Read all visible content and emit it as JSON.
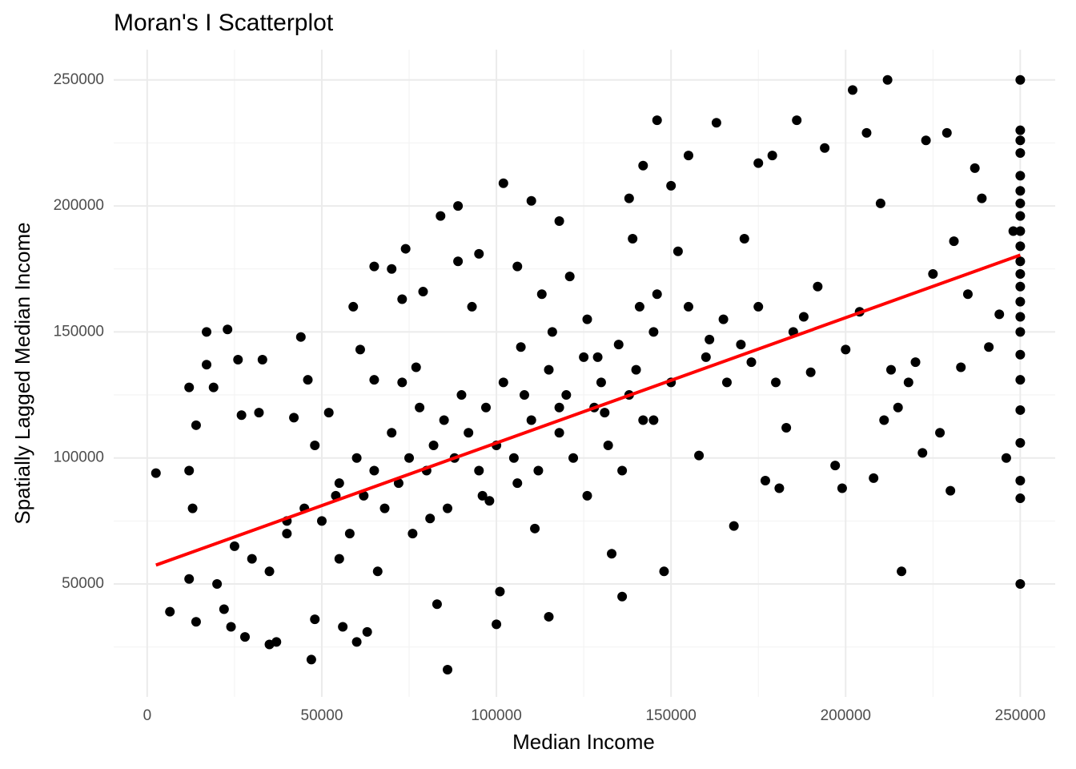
{
  "chart_data": {
    "type": "scatter",
    "title": "Moran's I Scatterplot",
    "x_label": "Median Income",
    "y_label": "Spatially Lagged Median Income",
    "color": "#000000",
    "x": [
      2500,
      6500,
      12000,
      12000,
      12000,
      13000,
      14000,
      14000,
      17000,
      17000,
      19000,
      23000,
      22000,
      24000,
      26000,
      27000,
      28000,
      32000,
      33000,
      35000,
      37000,
      40000,
      42000,
      44000,
      46000,
      47000,
      48000,
      52000,
      54000,
      56000,
      59000,
      60000,
      61000,
      63000,
      65000,
      65000,
      70000,
      73000,
      74000,
      77000,
      79000,
      81000,
      83000,
      84000,
      86000,
      89000,
      89000,
      95000,
      98000,
      100000,
      101000,
      102000,
      106000,
      107000,
      110000,
      111000,
      115000,
      118000,
      118000,
      121000,
      126000,
      129000,
      131000,
      133000,
      136000,
      138000,
      139000,
      141000,
      142000,
      145000,
      146000,
      148000,
      150000,
      152000,
      155000,
      158000,
      161000,
      163000,
      166000,
      168000,
      171000,
      173000,
      175000,
      177000,
      179000,
      181000,
      183000,
      186000,
      188000,
      190000,
      192000,
      194000,
      197000,
      199000,
      200000,
      202000,
      204000,
      206000,
      208000,
      210000,
      211000,
      212000,
      213000,
      215000,
      216000,
      218000,
      220000,
      222000,
      223000,
      225000,
      227000,
      229000,
      230000,
      231000,
      233000,
      235000,
      237000,
      239000,
      241000,
      244000,
      246000,
      248000,
      250000,
      250000,
      250000,
      250000,
      250000,
      250000,
      250000,
      250000,
      250000,
      250000,
      250000,
      250000,
      250000,
      250000,
      250000,
      250000,
      250000,
      250000,
      250000,
      250000,
      250000,
      250000,
      250000,
      40000,
      45000,
      50000,
      55000,
      58000,
      60000,
      62000,
      65000,
      68000,
      70000,
      72000,
      75000,
      78000,
      80000,
      82000,
      85000,
      88000,
      90000,
      92000,
      95000,
      97000,
      100000,
      102000,
      105000,
      108000,
      110000,
      112000,
      115000,
      118000,
      120000,
      122000,
      125000,
      128000,
      130000,
      132000,
      135000,
      138000,
      140000,
      142000,
      145000,
      150000,
      155000,
      160000,
      165000,
      170000,
      175000,
      180000,
      185000,
      30000,
      35000,
      25000,
      20000,
      48000,
      55000,
      66000,
      76000,
      86000,
      96000,
      106000,
      116000,
      126000,
      136000,
      146000,
      113000,
      93000,
      73000
    ],
    "values": [
      94000,
      39000,
      128000,
      95000,
      52000,
      80000,
      113000,
      35000,
      150000,
      137000,
      128000,
      151000,
      40000,
      33000,
      139000,
      117000,
      29000,
      118000,
      139000,
      26000,
      27000,
      75000,
      116000,
      148000,
      131000,
      20000,
      36000,
      118000,
      85000,
      33000,
      160000,
      27000,
      143000,
      31000,
      131000,
      176000,
      175000,
      163000,
      183000,
      136000,
      166000,
      76000,
      42000,
      196000,
      16000,
      200000,
      178000,
      181000,
      83000,
      34000,
      47000,
      209000,
      176000,
      144000,
      202000,
      72000,
      37000,
      194000,
      120000,
      172000,
      85000,
      140000,
      118000,
      62000,
      45000,
      203000,
      187000,
      160000,
      216000,
      115000,
      234000,
      55000,
      208000,
      182000,
      220000,
      101000,
      147000,
      233000,
      130000,
      73000,
      187000,
      138000,
      217000,
      91000,
      220000,
      88000,
      112000,
      234000,
      156000,
      134000,
      168000,
      223000,
      97000,
      88000,
      143000,
      246000,
      158000,
      229000,
      92000,
      201000,
      115000,
      250000,
      135000,
      120000,
      55000,
      130000,
      138000,
      102000,
      226000,
      173000,
      110000,
      229000,
      87000,
      186000,
      136000,
      165000,
      215000,
      203000,
      144000,
      157000,
      100000,
      190000,
      250000,
      230000,
      226000,
      221000,
      212000,
      206000,
      201000,
      196000,
      190000,
      184000,
      178000,
      173000,
      168000,
      162000,
      156000,
      150000,
      141000,
      131000,
      119000,
      106000,
      91000,
      84000,
      50000,
      70000,
      80000,
      75000,
      90000,
      70000,
      100000,
      85000,
      95000,
      80000,
      110000,
      90000,
      100000,
      120000,
      95000,
      105000,
      115000,
      100000,
      125000,
      110000,
      95000,
      120000,
      105000,
      130000,
      100000,
      125000,
      115000,
      95000,
      135000,
      110000,
      125000,
      100000,
      140000,
      120000,
      130000,
      105000,
      145000,
      125000,
      135000,
      115000,
      150000,
      130000,
      160000,
      140000,
      155000,
      145000,
      160000,
      130000,
      150000,
      60000,
      55000,
      65000,
      50000,
      105000,
      60000,
      55000,
      70000,
      80000,
      85000,
      90000,
      150000,
      155000,
      95000,
      165000,
      165000,
      160000,
      130000
    ],
    "trend": {
      "x": [
        2500,
        250000
      ],
      "y": [
        57500,
        180500
      ],
      "color": "#ff0000"
    },
    "xlim": [
      -9600,
      260000
    ],
    "ylim": [
      5200,
      262000
    ],
    "xticks": [
      0,
      50000,
      100000,
      150000,
      200000,
      250000
    ],
    "yticks": [
      50000,
      100000,
      150000,
      200000,
      250000
    ],
    "xminorticks": [
      25000,
      75000,
      125000,
      175000,
      225000
    ],
    "yminorticks": [
      25000,
      75000,
      125000,
      175000,
      225000
    ],
    "grid": true
  }
}
